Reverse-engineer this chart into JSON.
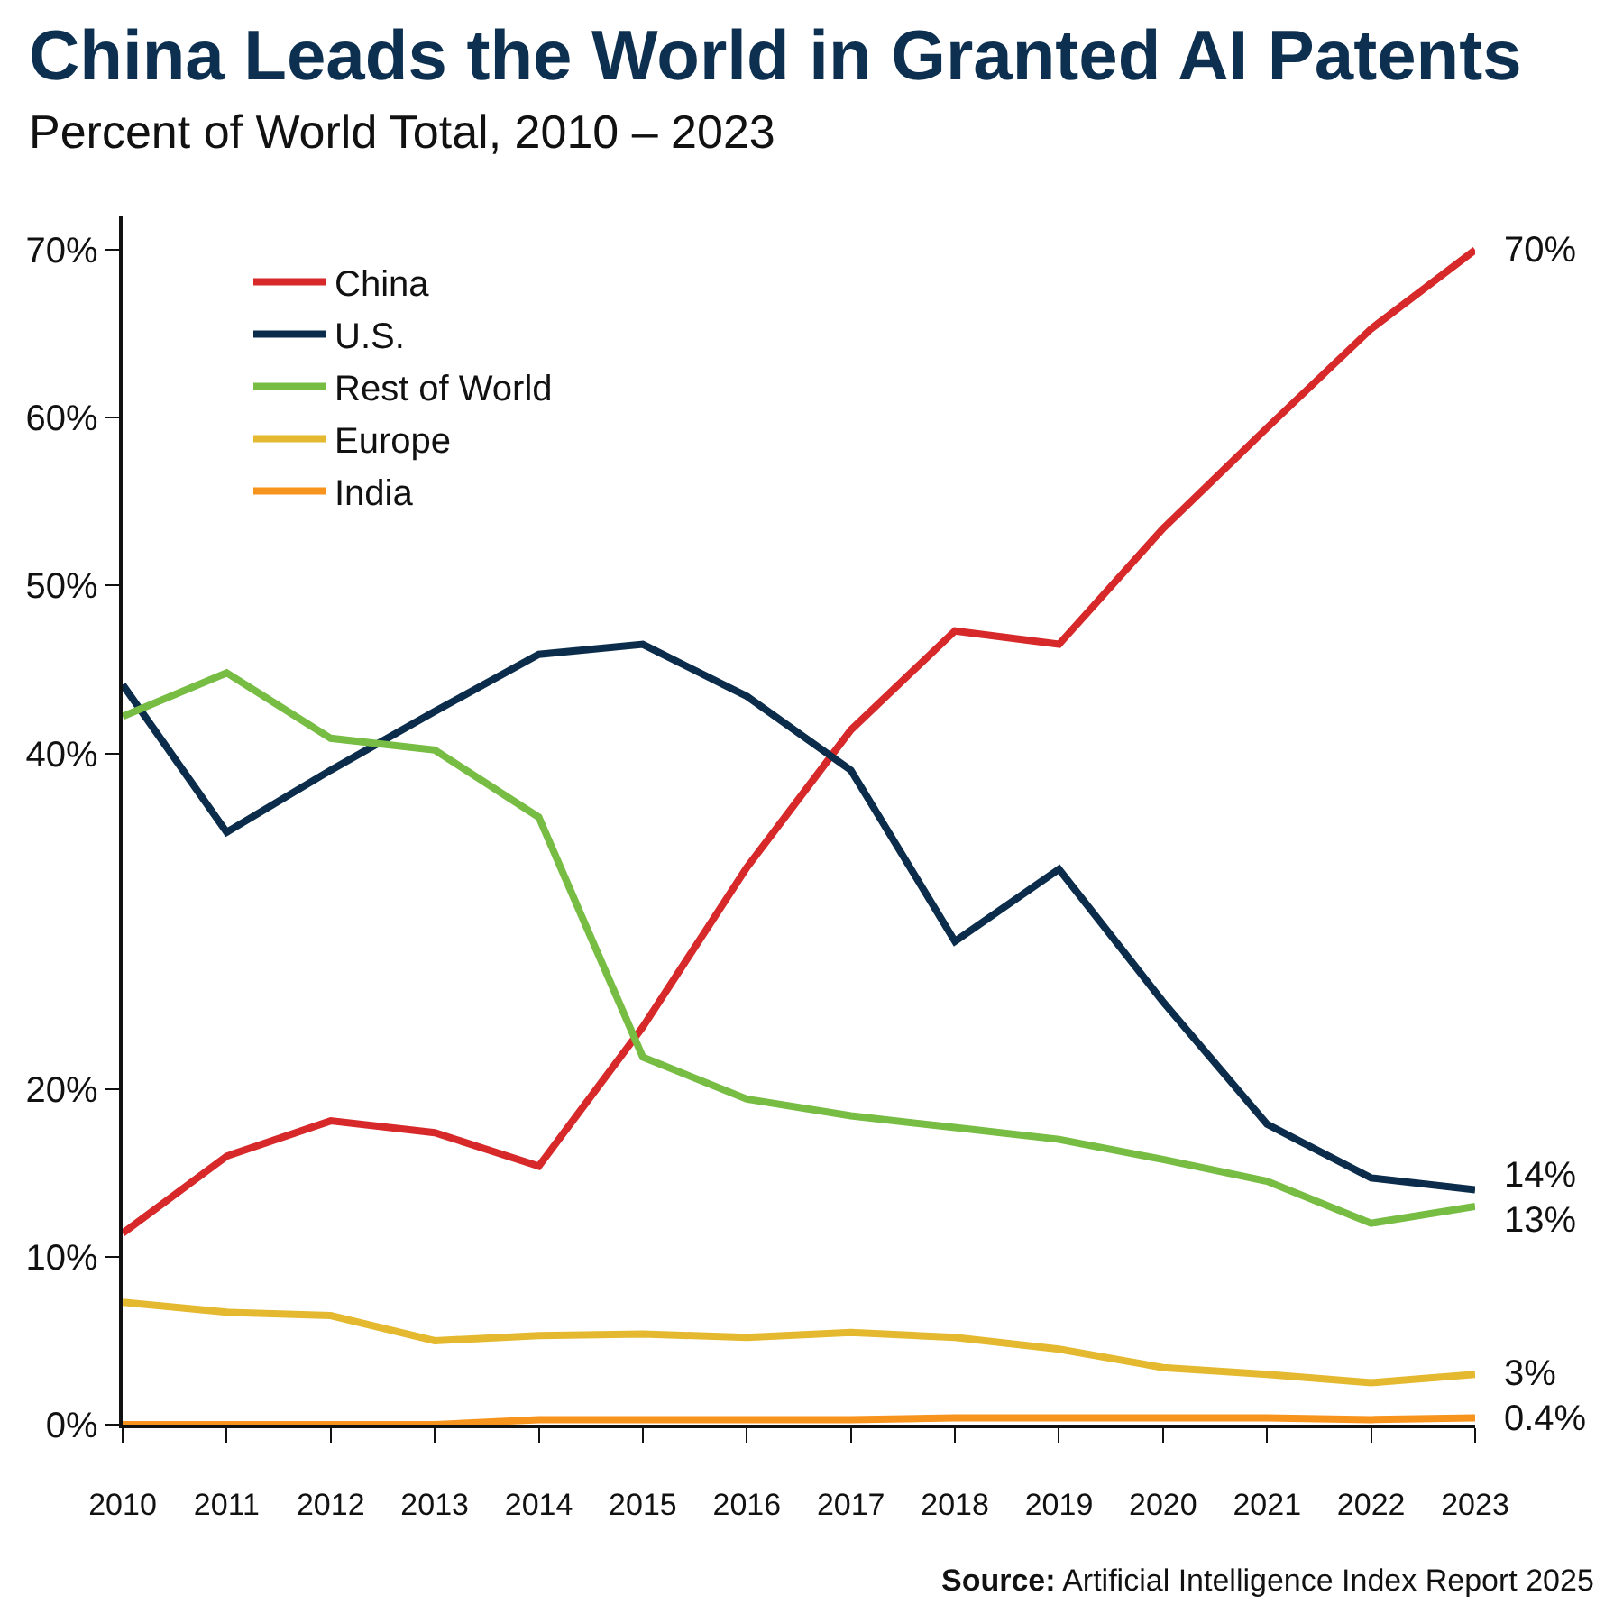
{
  "chart_data": {
    "type": "line",
    "title": "China Leads the World in Granted AI Patents",
    "subtitle": "Percent of World Total, 2010 – 2023",
    "annotations": [
      "Source: Artificial Intelligence Index Report 2025"
    ],
    "categories": [
      "2010",
      "2011",
      "2012",
      "2013",
      "2014",
      "2015",
      "2016",
      "2017",
      "2018",
      "2019",
      "2020",
      "2021",
      "2022",
      "2023"
    ],
    "series": [
      {
        "name": "China",
        "color": "#d7282a",
        "values": [
          11.4,
          16.0,
          18.1,
          17.4,
          15.4,
          23.7,
          33.2,
          41.4,
          47.3,
          46.5,
          53.4,
          59.4,
          65.3,
          70
        ],
        "value_labels": [
          null,
          null,
          null,
          null,
          null,
          null,
          null,
          null,
          null,
          null,
          null,
          null,
          null,
          "70%"
        ]
      },
      {
        "name": "U.S.",
        "color": "#0b2d4b",
        "values": [
          44.1,
          35.3,
          39.0,
          42.5,
          45.9,
          46.5,
          43.4,
          39.0,
          28.8,
          33.1,
          25.2,
          17.9,
          14.7,
          14
        ],
        "value_labels": [
          null,
          null,
          null,
          null,
          null,
          null,
          null,
          null,
          null,
          null,
          null,
          null,
          null,
          "14%"
        ]
      },
      {
        "name": "Rest of World",
        "color": "#77bd43",
        "values": [
          42.2,
          44.8,
          40.9,
          40.2,
          36.2,
          21.9,
          19.4,
          18.4,
          17.7,
          17.0,
          15.8,
          14.5,
          12.0,
          13
        ],
        "value_labels": [
          null,
          null,
          null,
          null,
          null,
          null,
          null,
          null,
          null,
          null,
          null,
          null,
          null,
          "13%"
        ]
      },
      {
        "name": "Europe",
        "color": "#e4b930",
        "values": [
          7.3,
          6.7,
          6.5,
          5.0,
          5.3,
          5.4,
          5.2,
          5.5,
          5.2,
          4.5,
          3.4,
          3.0,
          2.5,
          3
        ],
        "value_labels": [
          null,
          null,
          null,
          null,
          null,
          null,
          null,
          null,
          null,
          null,
          null,
          null,
          null,
          "3%"
        ]
      },
      {
        "name": "India",
        "color": "#f7941e",
        "values": [
          0,
          0,
          0,
          0,
          0.3,
          0.3,
          0.3,
          0.3,
          0.4,
          0.4,
          0.4,
          0.4,
          0.3,
          0.4
        ],
        "value_labels": [
          null,
          null,
          null,
          null,
          null,
          null,
          null,
          null,
          null,
          null,
          null,
          null,
          null,
          "0.4%"
        ]
      }
    ],
    "ylim": [
      0,
      72
    ],
    "yticks": [
      {
        "value": 0,
        "label": "0%"
      },
      {
        "value": 10,
        "label": "10%"
      },
      {
        "value": 20,
        "label": "20%"
      },
      {
        "value": 40,
        "label": "40%"
      },
      {
        "value": 50,
        "label": "50%"
      },
      {
        "value": 60,
        "label": "60%"
      },
      {
        "value": 70,
        "label": "70%"
      }
    ],
    "legend": "top left",
    "line_style": "solid",
    "grid": false
  }
}
